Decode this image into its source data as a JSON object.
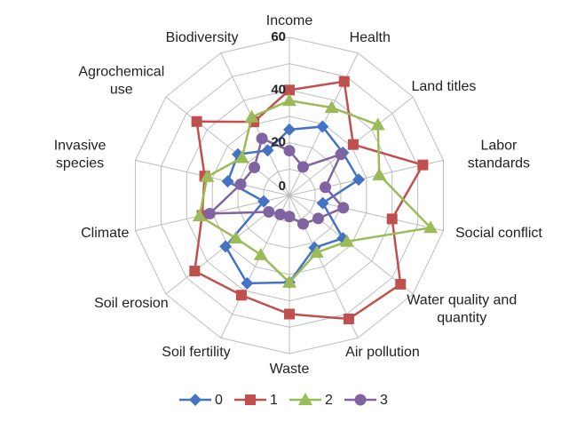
{
  "chart_data": {
    "type": "radar",
    "categories": [
      "Income",
      "Health",
      "Land titles",
      "Labor standards",
      "Social conflict",
      "Water quality and quantity",
      "Air pollution",
      "Waste",
      "Soil fertility",
      "Soil erosion",
      "Climate",
      "Invasive species",
      "Agrochemical use",
      "Biodiversity"
    ],
    "series": [
      {
        "name": "0",
        "color": "#4472c4",
        "marker": "diamond",
        "values": [
          25,
          29,
          26,
          27,
          13,
          26,
          22,
          33,
          37,
          31,
          10,
          24,
          25,
          19
        ]
      },
      {
        "name": "1",
        "color": "#c0504d",
        "marker": "square",
        "values": [
          40,
          48,
          31,
          52,
          40,
          54,
          52,
          45,
          42,
          46,
          34,
          33,
          45,
          31
        ]
      },
      {
        "name": "2",
        "color": "#9bbb59",
        "marker": "triangle",
        "values": [
          36,
          37,
          43,
          35,
          55,
          28,
          24,
          33,
          25,
          26,
          35,
          32,
          23,
          33
        ]
      },
      {
        "name": "3",
        "color": "#8064a2",
        "marker": "circle",
        "values": [
          17,
          12,
          25,
          14,
          21,
          14,
          12,
          8,
          8,
          10,
          31,
          19,
          17,
          24
        ]
      }
    ],
    "ylim": [
      0,
      60
    ],
    "yticks": [
      0,
      20,
      40,
      60
    ],
    "minor_grid": [
      10,
      30,
      50
    ],
    "grid": true,
    "legend": "bottom"
  }
}
